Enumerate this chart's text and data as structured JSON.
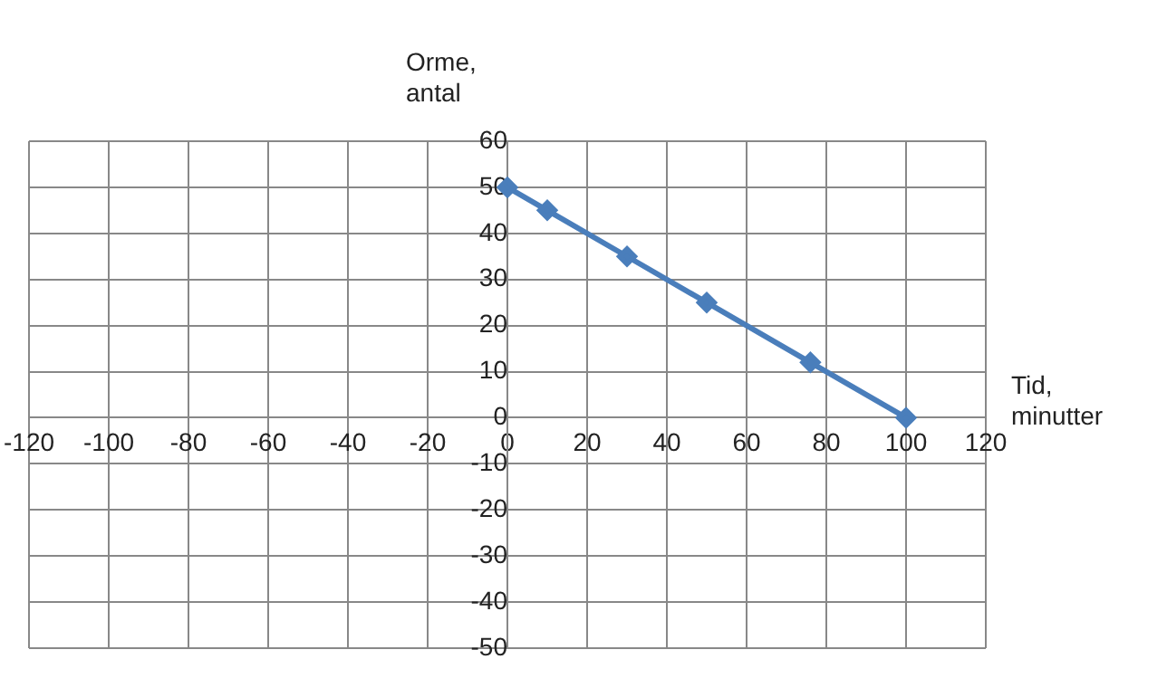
{
  "chart_data": {
    "type": "line",
    "xlabel": "Tid,\nminutter",
    "ylabel": "Orme,\nantal",
    "x": [
      0,
      10,
      30,
      50,
      76,
      100
    ],
    "series": [
      {
        "color": "#4a7ebb",
        "values": [
          50,
          45,
          35,
          25,
          12,
          0
        ]
      }
    ],
    "xlim": [
      -120,
      120
    ],
    "xticks": [
      -120,
      -100,
      -80,
      -60,
      -40,
      -20,
      0,
      20,
      40,
      60,
      80,
      100,
      120
    ],
    "ylim": [
      -50,
      60
    ],
    "yticks": [
      -50,
      -40,
      -30,
      -20,
      -10,
      0,
      10,
      20,
      30,
      40,
      50,
      60
    ],
    "grid": true,
    "legend": false,
    "marker": "diamond",
    "line_style": "solid"
  }
}
